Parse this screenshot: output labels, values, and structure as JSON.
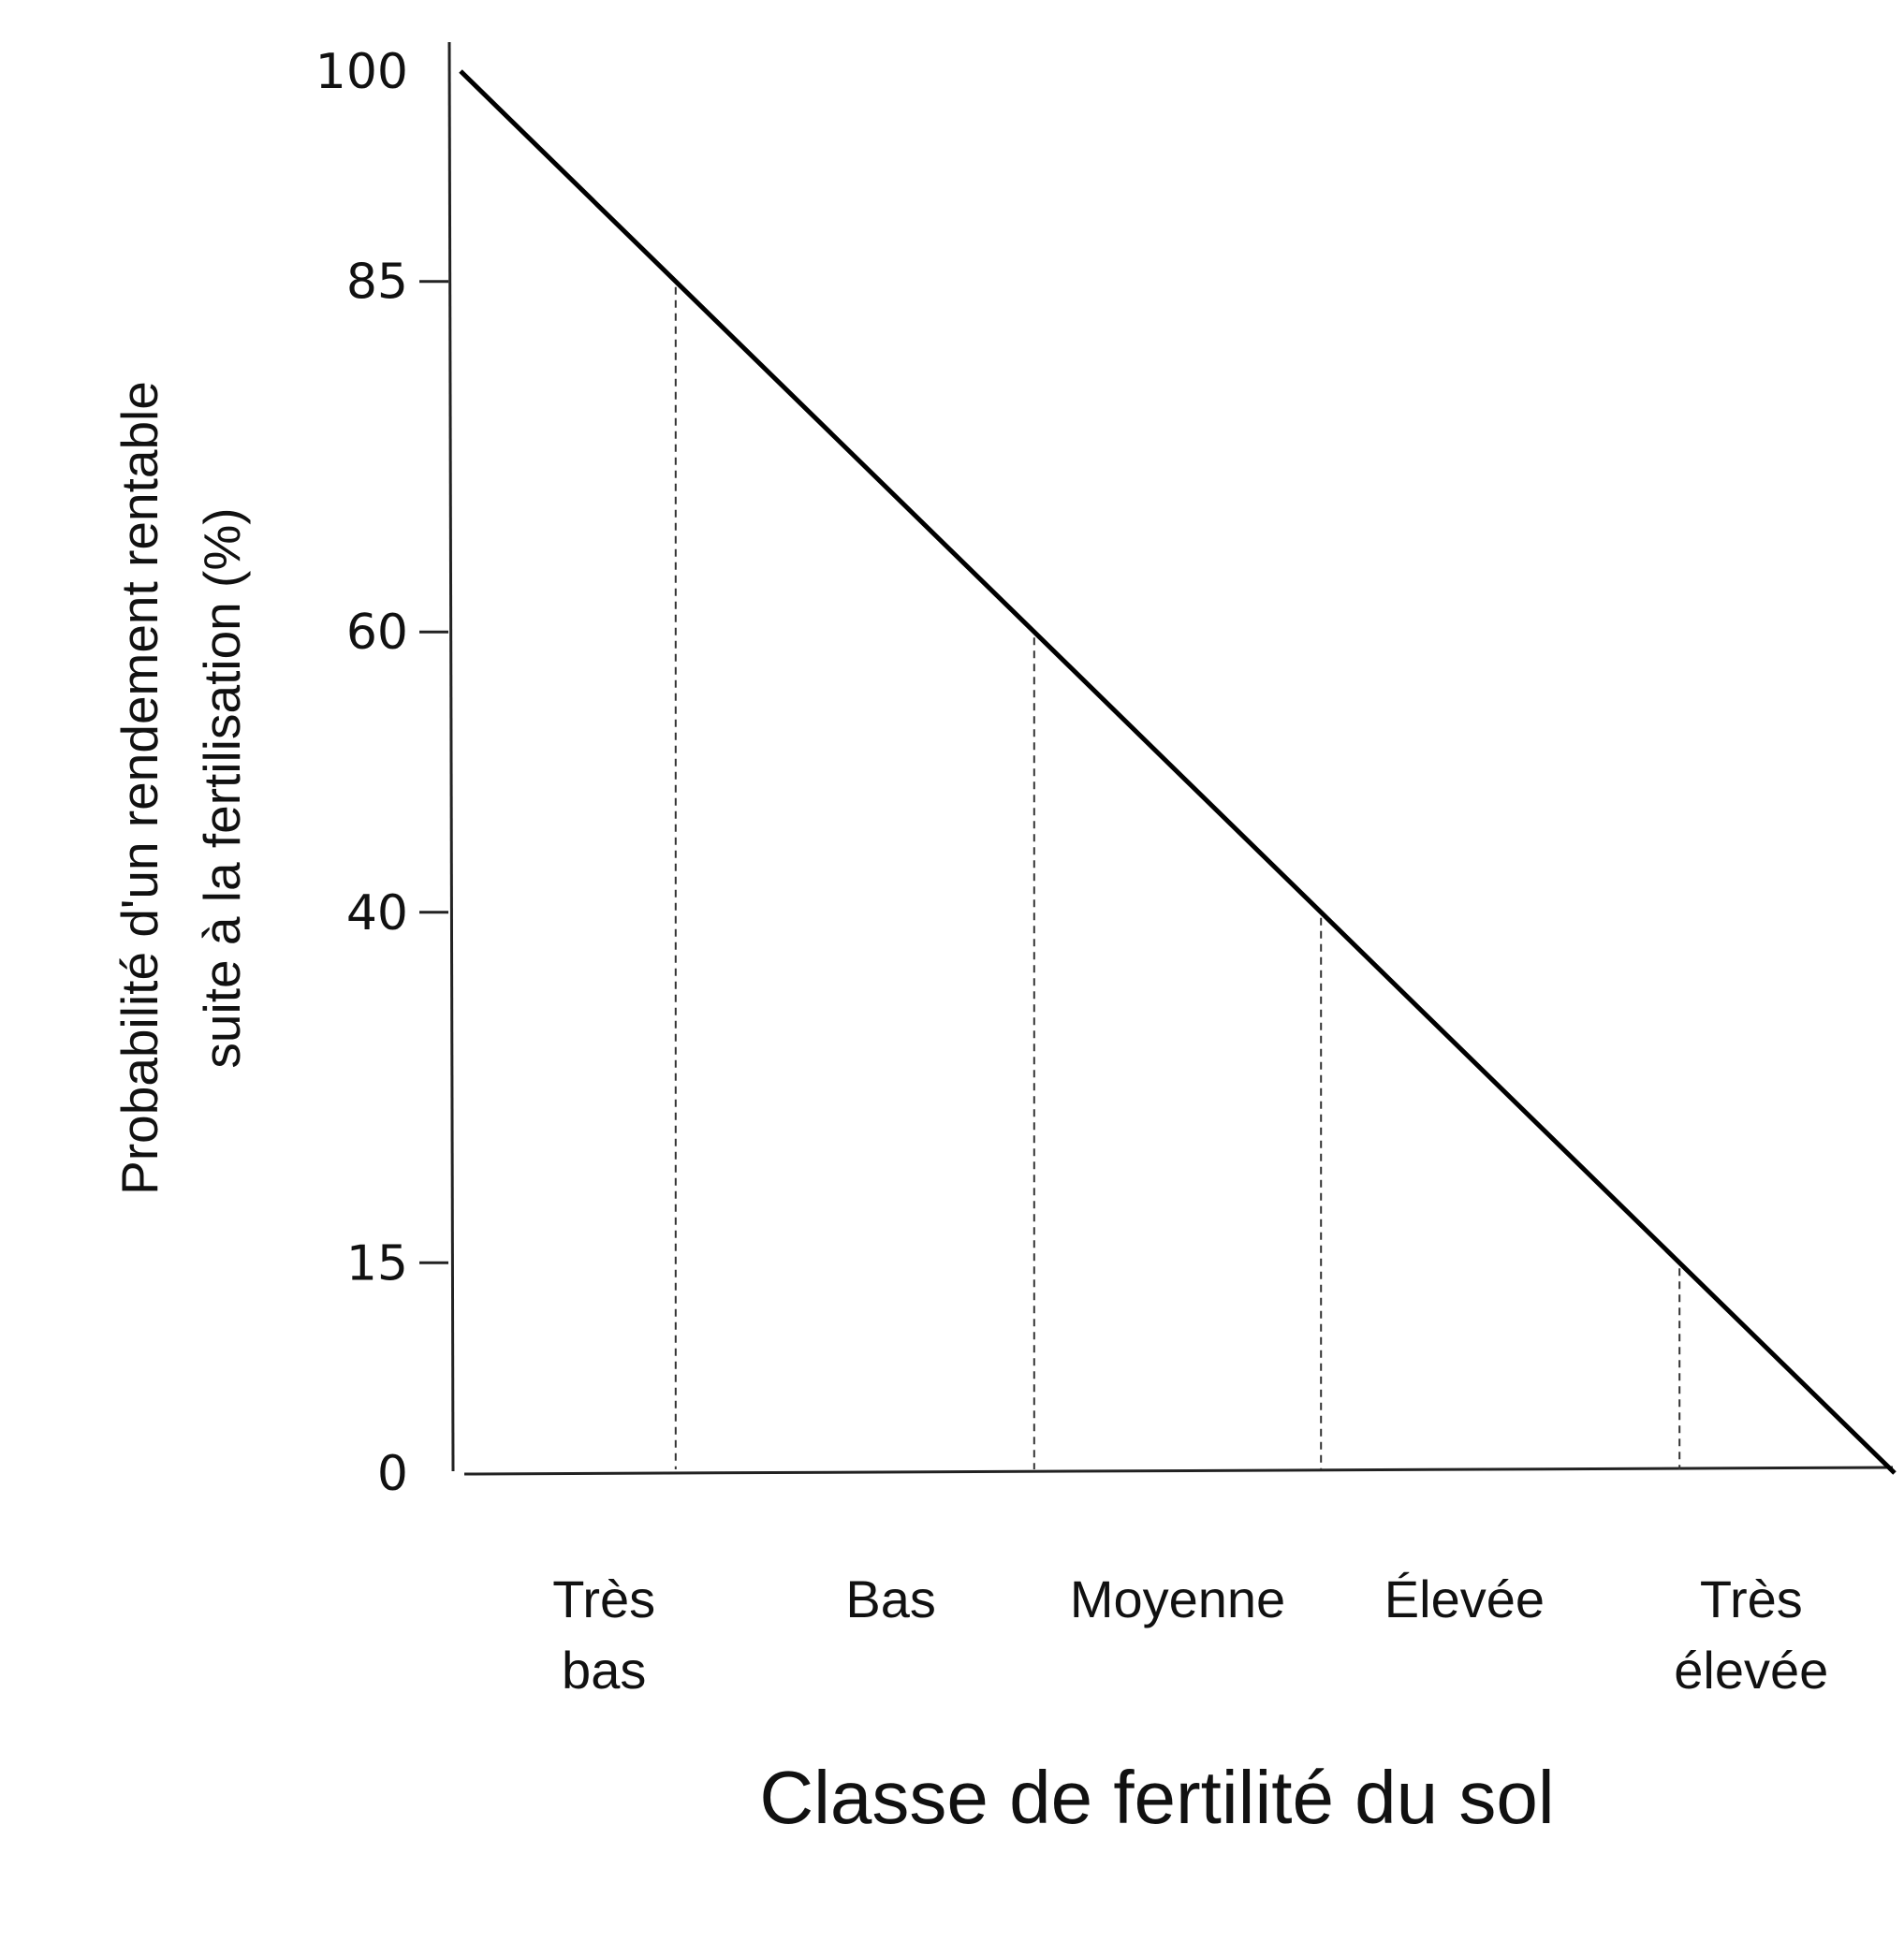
{
  "chart_data": {
    "type": "line",
    "title": "",
    "xlabel": "Classe de fertilité du sol",
    "ylabel_lines": [
      "Probabilité d'un rendement rentable",
      "suite à la fertilisation (%)"
    ],
    "ylim": [
      0,
      100
    ],
    "y_ticks": [
      0,
      15,
      40,
      60,
      85,
      100
    ],
    "y_tick_labels": [
      "0",
      "15",
      "40",
      "60",
      "85",
      "100"
    ],
    "categories": [
      {
        "lines": [
          "Très",
          "bas"
        ]
      },
      {
        "lines": [
          "Bas"
        ]
      },
      {
        "lines": [
          "Moyenne"
        ]
      },
      {
        "lines": [
          "Élevée"
        ]
      },
      {
        "lines": [
          "Très",
          "élevée"
        ]
      }
    ],
    "class_boundaries": [
      85,
      60,
      40,
      15
    ],
    "series": [
      {
        "points": [
          [
            0,
            100
          ],
          [
            5,
            0
          ]
        ]
      }
    ],
    "grid": false,
    "legend": false
  }
}
